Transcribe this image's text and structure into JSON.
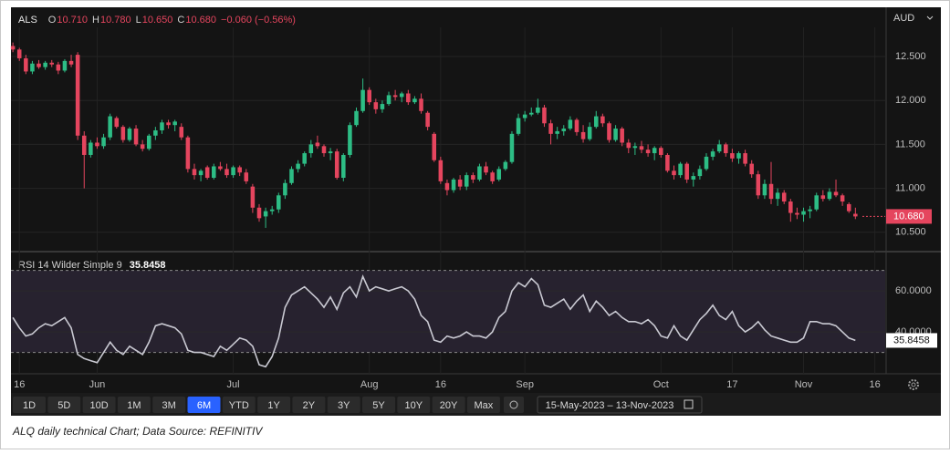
{
  "chart_data": [
    {
      "type": "candlestick",
      "symbol": "ALS",
      "legend": [
        [
          "O",
          "10.710"
        ],
        [
          "H",
          "10.780"
        ],
        [
          "L",
          "10.650"
        ],
        [
          "C",
          "10.680"
        ]
      ],
      "change": "−0.060 (−0.56%)",
      "currency": "AUD",
      "last_label": "10.680",
      "up_color": "#2dbd85",
      "down_color": "#e5455e",
      "xlim": [
        -0.3,
        134.6
      ],
      "ylim": [
        10.29,
        13.04
      ],
      "yticks": [
        {
          "value": 10.5,
          "label": "10.500"
        },
        {
          "value": 11,
          "label": "11.000"
        },
        {
          "value": 11.5,
          "label": "11.500"
        },
        {
          "value": 12,
          "label": "12.000"
        },
        {
          "value": 12.5,
          "label": "12.500"
        }
      ],
      "grid": true,
      "ohlc": [
        [
          12.62,
          12.66,
          12.55,
          12.58
        ],
        [
          12.58,
          12.6,
          12.45,
          12.48
        ],
        [
          12.48,
          12.52,
          12.3,
          12.33
        ],
        [
          12.33,
          12.45,
          12.3,
          12.42
        ],
        [
          12.42,
          12.46,
          12.36,
          12.38
        ],
        [
          12.38,
          12.45,
          12.35,
          12.43
        ],
        [
          12.43,
          12.46,
          12.38,
          12.41
        ],
        [
          12.41,
          12.44,
          12.3,
          12.34
        ],
        [
          12.34,
          12.47,
          12.32,
          12.45
        ],
        [
          12.45,
          12.52,
          12.38,
          12.41
        ],
        [
          12.52,
          12.55,
          11.55,
          11.6
        ],
        [
          11.6,
          11.65,
          11,
          11.38
        ],
        [
          11.38,
          11.55,
          11.35,
          11.52
        ],
        [
          11.52,
          11.58,
          11.45,
          11.48
        ],
        [
          11.48,
          11.62,
          11.45,
          11.58
        ],
        [
          11.58,
          11.85,
          11.55,
          11.82
        ],
        [
          11.8,
          11.82,
          11.68,
          11.7
        ],
        [
          11.7,
          11.72,
          11.52,
          11.55
        ],
        [
          11.55,
          11.7,
          11.53,
          11.68
        ],
        [
          11.68,
          11.72,
          11.48,
          11.5
        ],
        [
          11.5,
          11.55,
          11.42,
          11.45
        ],
        [
          11.45,
          11.62,
          11.43,
          11.6
        ],
        [
          11.6,
          11.7,
          11.55,
          11.66
        ],
        [
          11.66,
          11.78,
          11.62,
          11.75
        ],
        [
          11.75,
          11.78,
          11.68,
          11.72
        ],
        [
          11.72,
          11.78,
          11.65,
          11.76
        ],
        [
          11.7,
          11.74,
          11.55,
          11.58
        ],
        [
          11.58,
          11.6,
          11.18,
          11.22
        ],
        [
          11.22,
          11.28,
          11.1,
          11.15
        ],
        [
          11.15,
          11.22,
          11.08,
          11.2
        ],
        [
          11.24,
          11.26,
          11.1,
          11.12
        ],
        [
          11.12,
          11.28,
          11.1,
          11.25
        ],
        [
          11.25,
          11.3,
          11.2,
          11.22
        ],
        [
          11.22,
          11.28,
          11.12,
          11.15
        ],
        [
          11.15,
          11.26,
          11.12,
          11.24
        ],
        [
          11.24,
          11.26,
          11.14,
          11.18
        ],
        [
          11.18,
          11.22,
          11.05,
          11.08
        ],
        [
          11.02,
          11.05,
          10.72,
          10.78
        ],
        [
          10.78,
          10.82,
          10.62,
          10.66
        ],
        [
          10.68,
          10.78,
          10.55,
          10.74
        ],
        [
          10.74,
          10.8,
          10.7,
          10.76
        ],
        [
          10.76,
          10.95,
          10.72,
          10.92
        ],
        [
          10.92,
          11.1,
          10.88,
          11.06
        ],
        [
          11.06,
          11.25,
          11.04,
          11.22
        ],
        [
          11.22,
          11.32,
          11.18,
          11.28
        ],
        [
          11.28,
          11.42,
          11.25,
          11.4
        ],
        [
          11.4,
          11.55,
          11.35,
          11.5
        ],
        [
          11.52,
          11.6,
          11.45,
          11.48
        ],
        [
          11.48,
          11.5,
          11.36,
          11.4
        ],
        [
          11.4,
          11.46,
          11.32,
          11.42
        ],
        [
          11.42,
          11.45,
          11.1,
          11.12
        ],
        [
          11.12,
          11.4,
          11.08,
          11.38
        ],
        [
          11.38,
          11.75,
          11.35,
          11.72
        ],
        [
          11.72,
          11.92,
          11.7,
          11.88
        ],
        [
          11.88,
          12.25,
          11.86,
          12.12
        ],
        [
          12.12,
          12.15,
          11.95,
          11.98
        ],
        [
          11.98,
          12.02,
          11.85,
          11.9
        ],
        [
          11.9,
          12,
          11.86,
          11.96
        ],
        [
          11.96,
          12.1,
          11.94,
          12.06
        ],
        [
          12.06,
          12.12,
          12,
          12.04
        ],
        [
          12.04,
          12.1,
          11.98,
          12.08
        ],
        [
          12.08,
          12.12,
          11.95,
          11.98
        ],
        [
          11.98,
          12.05,
          11.96,
          12.02
        ],
        [
          12.02,
          12.08,
          11.85,
          11.88
        ],
        [
          11.86,
          11.88,
          11.66,
          11.7
        ],
        [
          11.62,
          11.64,
          11.3,
          11.32
        ],
        [
          11.32,
          11.36,
          11.05,
          11.08
        ],
        [
          11.06,
          11.1,
          10.92,
          10.98
        ],
        [
          10.98,
          11.12,
          10.95,
          11.1
        ],
        [
          11.1,
          11.15,
          10.98,
          11.02
        ],
        [
          11.02,
          11.18,
          10.98,
          11.15
        ],
        [
          11.15,
          11.18,
          11.06,
          11.1
        ],
        [
          11.1,
          11.28,
          11.08,
          11.25
        ],
        [
          11.25,
          11.3,
          11.15,
          11.18
        ],
        [
          11.18,
          11.2,
          11.05,
          11.08
        ],
        [
          11.1,
          11.25,
          11.08,
          11.22
        ],
        [
          11.22,
          11.32,
          11.2,
          11.3
        ],
        [
          11.3,
          11.65,
          11.28,
          11.62
        ],
        [
          11.62,
          11.85,
          11.6,
          11.8
        ],
        [
          11.8,
          11.88,
          11.76,
          11.84
        ],
        [
          11.84,
          11.92,
          11.82,
          11.86
        ],
        [
          11.86,
          12.02,
          11.84,
          11.92
        ],
        [
          11.92,
          11.95,
          11.7,
          11.74
        ],
        [
          11.74,
          11.78,
          11.5,
          11.62
        ],
        [
          11.62,
          11.7,
          11.56,
          11.65
        ],
        [
          11.65,
          11.72,
          11.6,
          11.68
        ],
        [
          11.68,
          11.82,
          11.66,
          11.78
        ],
        [
          11.78,
          11.8,
          11.6,
          11.64
        ],
        [
          11.64,
          11.72,
          11.52,
          11.56
        ],
        [
          11.56,
          11.75,
          11.54,
          11.7
        ],
        [
          11.7,
          11.88,
          11.68,
          11.82
        ],
        [
          11.82,
          11.85,
          11.7,
          11.74
        ],
        [
          11.74,
          11.76,
          11.52,
          11.55
        ],
        [
          11.55,
          11.72,
          11.53,
          11.68
        ],
        [
          11.68,
          11.7,
          11.48,
          11.52
        ],
        [
          11.52,
          11.56,
          11.4,
          11.46
        ],
        [
          11.46,
          11.52,
          11.38,
          11.48
        ],
        [
          11.48,
          11.54,
          11.4,
          11.44
        ],
        [
          11.44,
          11.5,
          11.36,
          11.4
        ],
        [
          11.4,
          11.48,
          11.32,
          11.46
        ],
        [
          11.46,
          11.48,
          11.35,
          11.38
        ],
        [
          11.38,
          11.4,
          11.18,
          11.2
        ],
        [
          11.2,
          11.26,
          11.1,
          11.15
        ],
        [
          11.15,
          11.3,
          11.12,
          11.28
        ],
        [
          11.28,
          11.3,
          11.06,
          11.1
        ],
        [
          11.1,
          11.18,
          11.02,
          11.14
        ],
        [
          11.14,
          11.26,
          11.1,
          11.22
        ],
        [
          11.22,
          11.4,
          11.2,
          11.36
        ],
        [
          11.36,
          11.45,
          11.32,
          11.42
        ],
        [
          11.42,
          11.55,
          11.4,
          11.5
        ],
        [
          11.5,
          11.52,
          11.36,
          11.4
        ],
        [
          11.4,
          11.45,
          11.3,
          11.34
        ],
        [
          11.34,
          11.42,
          11.28,
          11.4
        ],
        [
          11.4,
          11.44,
          11.25,
          11.28
        ],
        [
          11.28,
          11.32,
          11.12,
          11.16
        ],
        [
          11.16,
          11.2,
          10.88,
          10.92
        ],
        [
          10.92,
          11.1,
          10.88,
          11.05
        ],
        [
          11.05,
          11.3,
          10.82,
          10.88
        ],
        [
          10.88,
          11,
          10.8,
          10.95
        ],
        [
          10.95,
          10.98,
          10.82,
          10.85
        ],
        [
          10.85,
          10.88,
          10.62,
          10.72
        ],
        [
          10.72,
          10.78,
          10.65,
          10.7
        ],
        [
          10.7,
          10.78,
          10.62,
          10.74
        ],
        [
          10.74,
          10.8,
          10.66,
          10.76
        ],
        [
          10.76,
          10.95,
          10.74,
          10.92
        ],
        [
          10.92,
          10.98,
          10.85,
          10.88
        ],
        [
          10.88,
          11,
          10.86,
          10.96
        ],
        [
          10.96,
          11.1,
          10.9,
          10.92
        ],
        [
          10.92,
          10.94,
          10.8,
          10.85
        ],
        [
          10.82,
          10.84,
          10.72,
          10.74
        ],
        [
          10.71,
          10.78,
          10.65,
          10.68
        ]
      ]
    },
    {
      "type": "line",
      "title": "RSI 14 Wilder Simple 9",
      "color": "#c9c9d2",
      "band_color": "#27222f",
      "band": [
        30,
        70
      ],
      "xlim": [
        -0.3,
        134.6
      ],
      "ylim": [
        19.6,
        78.7
      ],
      "yticks": [
        {
          "value": 40,
          "label": "40.0000"
        },
        {
          "value": 60,
          "label": "60.0000"
        }
      ],
      "xticks": [
        {
          "value": 1,
          "label": "16"
        },
        {
          "value": 13,
          "label": "Jun"
        },
        {
          "value": 34,
          "label": "Jul"
        },
        {
          "value": 55,
          "label": "Aug"
        },
        {
          "value": 66,
          "label": "16"
        },
        {
          "value": 79,
          "label": "Sep"
        },
        {
          "value": 100,
          "label": "Oct"
        },
        {
          "value": 111,
          "label": "17"
        },
        {
          "value": 122,
          "label": "Nov"
        },
        {
          "value": 133,
          "label": "16"
        }
      ],
      "values": [
        47,
        42,
        38,
        39,
        42,
        44,
        43,
        45,
        47,
        42,
        29,
        27,
        26,
        25,
        30,
        35,
        31,
        29,
        33,
        31,
        29,
        35,
        43,
        44,
        43,
        42,
        39,
        31,
        30,
        30,
        29,
        28,
        33,
        31,
        34,
        37,
        36,
        33,
        24,
        23,
        28,
        37,
        52,
        58,
        60,
        62,
        59,
        56,
        52,
        57,
        51,
        59,
        62,
        57,
        67,
        60,
        62,
        61,
        60,
        61,
        62,
        60,
        56,
        48,
        45,
        36,
        35,
        38,
        37,
        38,
        40,
        38,
        38,
        37,
        40,
        47,
        50,
        60,
        64,
        62,
        66,
        63,
        53,
        52,
        54,
        56,
        51,
        55,
        58,
        50,
        55,
        52,
        48,
        50,
        47,
        45,
        45,
        44,
        46,
        43,
        38,
        37,
        43,
        38,
        36,
        41,
        46,
        49,
        53,
        48,
        46,
        50,
        43,
        40,
        42,
        45,
        41,
        38,
        37,
        36,
        35,
        35,
        37,
        45,
        45,
        44,
        44,
        43,
        40,
        37,
        35.8458
      ]
    }
  ],
  "toolbar": {
    "buttons": [
      "1D",
      "5D",
      "10D",
      "1M",
      "3M",
      "6M",
      "YTD",
      "1Y",
      "2Y",
      "3Y",
      "5Y",
      "10Y",
      "20Y",
      "Max"
    ],
    "active": 5,
    "range": "15-May-2023 – 13-Nov-2023"
  },
  "caption": "ALQ daily technical Chart; Data Source: REFINITIV"
}
